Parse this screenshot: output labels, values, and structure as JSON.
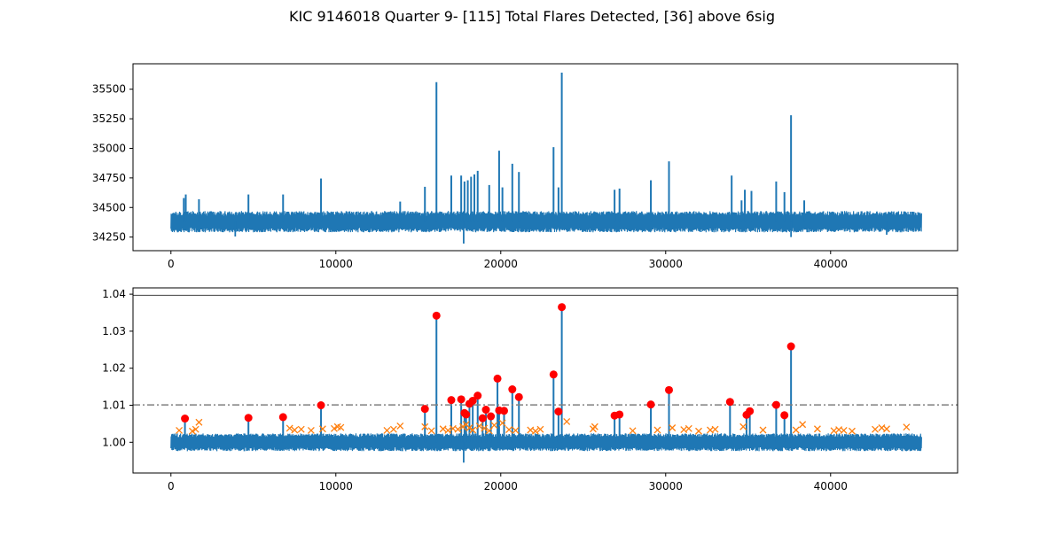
{
  "figure": {
    "title": "KIC 9146018 Quarter 9- [115] Total Flares Detected, [36] above 6sig"
  },
  "colors": {
    "series": "#1f77b4",
    "flare_marker": "#ff0000",
    "candidate_marker": "#ff7f0e",
    "threshold_line": "#808080",
    "reference_line": "#404040"
  },
  "chart_data": [
    {
      "type": "line",
      "title": "",
      "xlabel": "",
      "ylabel": "",
      "xlim": [
        -2300,
        47700
      ],
      "ylim": [
        34135,
        35715
      ],
      "x_ticks": [
        0,
        10000,
        20000,
        30000,
        40000
      ],
      "x_tick_labels": [
        "0",
        "10000",
        "20000",
        "30000",
        "40000"
      ],
      "y_ticks": [
        34250,
        34500,
        34750,
        35000,
        35250,
        35500
      ],
      "y_tick_labels": [
        "34250",
        "34500",
        "34750",
        "35000",
        "35250",
        "35500"
      ],
      "grid": false,
      "legend": "none",
      "x_range": [
        0,
        45500
      ],
      "baseline": 34380,
      "noise_band": [
        34290,
        34470
      ],
      "spikes": [
        {
          "x": 780,
          "y": 34580
        },
        {
          "x": 900,
          "y": 34610
        },
        {
          "x": 1700,
          "y": 34570
        },
        {
          "x": 4700,
          "y": 34610
        },
        {
          "x": 6800,
          "y": 34610
        },
        {
          "x": 9100,
          "y": 34745
        },
        {
          "x": 13900,
          "y": 34550
        },
        {
          "x": 15400,
          "y": 34675
        },
        {
          "x": 16100,
          "y": 35560
        },
        {
          "x": 17000,
          "y": 34770
        },
        {
          "x": 17600,
          "y": 34770
        },
        {
          "x": 17800,
          "y": 34720
        },
        {
          "x": 18000,
          "y": 34730
        },
        {
          "x": 18200,
          "y": 34760
        },
        {
          "x": 18400,
          "y": 34780
        },
        {
          "x": 18600,
          "y": 34810
        },
        {
          "x": 19300,
          "y": 34690
        },
        {
          "x": 19900,
          "y": 34980
        },
        {
          "x": 20100,
          "y": 34670
        },
        {
          "x": 20700,
          "y": 34870
        },
        {
          "x": 21100,
          "y": 34800
        },
        {
          "x": 23200,
          "y": 35010
        },
        {
          "x": 23500,
          "y": 34670
        },
        {
          "x": 23700,
          "y": 35640
        },
        {
          "x": 26900,
          "y": 34650
        },
        {
          "x": 27200,
          "y": 34660
        },
        {
          "x": 29100,
          "y": 34730
        },
        {
          "x": 30200,
          "y": 34890
        },
        {
          "x": 34000,
          "y": 34770
        },
        {
          "x": 34600,
          "y": 34560
        },
        {
          "x": 34800,
          "y": 34650
        },
        {
          "x": 35200,
          "y": 34640
        },
        {
          "x": 36700,
          "y": 34720
        },
        {
          "x": 37200,
          "y": 34630
        },
        {
          "x": 37600,
          "y": 35280
        },
        {
          "x": 38400,
          "y": 34560
        }
      ],
      "dips": [
        {
          "x": 17750,
          "y": 34195
        },
        {
          "x": 3900,
          "y": 34255
        },
        {
          "x": 37600,
          "y": 34250
        },
        {
          "x": 43400,
          "y": 34270
        }
      ]
    },
    {
      "type": "scatter",
      "title": "",
      "xlabel": "",
      "ylabel": "",
      "xlim": [
        -2300,
        47700
      ],
      "ylim": [
        0.9917,
        1.0417
      ],
      "x_ticks": [
        0,
        10000,
        20000,
        30000,
        40000
      ],
      "x_tick_labels": [
        "0",
        "10000",
        "20000",
        "30000",
        "40000"
      ],
      "y_ticks": [
        1.0,
        1.01,
        1.02,
        1.03,
        1.04
      ],
      "y_tick_labels": [
        "1.00",
        "1.01",
        "1.02",
        "1.03",
        "1.04"
      ],
      "grid": false,
      "legend": "none",
      "threshold": 1.0101,
      "reference": 1.0397,
      "x_range": [
        0,
        45500
      ],
      "baseline": 1.0,
      "noise_band": [
        0.9976,
        1.0024
      ],
      "min_dip": {
        "x": 17750,
        "y": 0.9945
      },
      "flares": [
        [
          850,
          1.0064
        ],
        [
          4700,
          1.0066
        ],
        [
          6800,
          1.0068
        ],
        [
          9100,
          1.01
        ],
        [
          15400,
          1.009
        ],
        [
          16100,
          1.0342
        ],
        [
          17000,
          1.0114
        ],
        [
          17600,
          1.0116
        ],
        [
          17800,
          1.0079
        ],
        [
          17900,
          1.0075
        ],
        [
          18100,
          1.0104
        ],
        [
          18300,
          1.0112
        ],
        [
          18600,
          1.0126
        ],
        [
          18900,
          1.0065
        ],
        [
          19100,
          1.0088
        ],
        [
          19400,
          1.007
        ],
        [
          19800,
          1.0172
        ],
        [
          19900,
          1.0086
        ],
        [
          20200,
          1.0085
        ],
        [
          20700,
          1.0143
        ],
        [
          21100,
          1.0122
        ],
        [
          23200,
          1.0183
        ],
        [
          23500,
          1.0083
        ],
        [
          23700,
          1.0365
        ],
        [
          26900,
          1.0072
        ],
        [
          27200,
          1.0075
        ],
        [
          29100,
          1.0102
        ],
        [
          30200,
          1.0141
        ],
        [
          33900,
          1.0109
        ],
        [
          34900,
          1.0074
        ],
        [
          35100,
          1.0084
        ],
        [
          36700,
          1.0101
        ],
        [
          37200,
          1.0073
        ],
        [
          37600,
          1.0259
        ]
      ],
      "candidates": [
        [
          500,
          1.0032
        ],
        [
          1300,
          1.003
        ],
        [
          1500,
          1.0035
        ],
        [
          1700,
          1.0054
        ],
        [
          7200,
          1.0038
        ],
        [
          7500,
          1.0033
        ],
        [
          7900,
          1.0035
        ],
        [
          8500,
          1.0032
        ],
        [
          9200,
          1.0036
        ],
        [
          9900,
          1.0037
        ],
        [
          10100,
          1.0042
        ],
        [
          10300,
          1.004
        ],
        [
          13100,
          1.0032
        ],
        [
          13500,
          1.0035
        ],
        [
          13900,
          1.0044
        ],
        [
          15400,
          1.0042
        ],
        [
          15800,
          1.0031
        ],
        [
          16500,
          1.0036
        ],
        [
          16800,
          1.0032
        ],
        [
          17100,
          1.0037
        ],
        [
          17400,
          1.0035
        ],
        [
          17700,
          1.0042
        ],
        [
          17900,
          1.0048
        ],
        [
          18100,
          1.0039
        ],
        [
          18300,
          1.0033
        ],
        [
          18700,
          1.0044
        ],
        [
          19000,
          1.0038
        ],
        [
          19300,
          1.0031
        ],
        [
          19600,
          1.0046
        ],
        [
          20100,
          1.0052
        ],
        [
          20500,
          1.0034
        ],
        [
          20900,
          1.0032
        ],
        [
          21800,
          1.0033
        ],
        [
          22100,
          1.003
        ],
        [
          22400,
          1.0035
        ],
        [
          24000,
          1.0056
        ],
        [
          25600,
          1.0036
        ],
        [
          25700,
          1.0042
        ],
        [
          28000,
          1.0031
        ],
        [
          29500,
          1.0033
        ],
        [
          30400,
          1.0039
        ],
        [
          31100,
          1.0034
        ],
        [
          31400,
          1.0037
        ],
        [
          32000,
          1.003
        ],
        [
          32700,
          1.0033
        ],
        [
          33000,
          1.0035
        ],
        [
          34700,
          1.0042
        ],
        [
          35900,
          1.0033
        ],
        [
          37900,
          1.0033
        ],
        [
          38300,
          1.0048
        ],
        [
          39200,
          1.0036
        ],
        [
          40200,
          1.0031
        ],
        [
          40500,
          1.0034
        ],
        [
          40800,
          1.0032
        ],
        [
          41300,
          1.003
        ],
        [
          42700,
          1.0035
        ],
        [
          43100,
          1.0039
        ],
        [
          43400,
          1.0036
        ],
        [
          44600,
          1.0041
        ]
      ]
    }
  ]
}
